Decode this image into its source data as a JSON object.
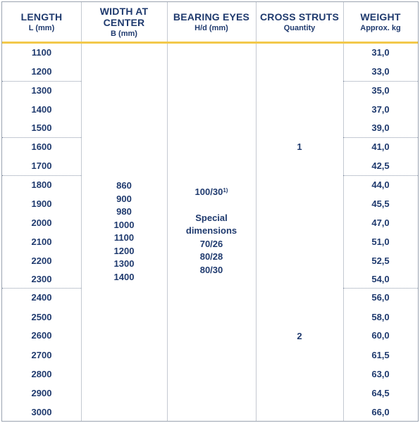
{
  "headers": {
    "length": {
      "title": "LENGTH",
      "sub": "L (mm)"
    },
    "width": {
      "title_line1": "WIDTH AT",
      "title_line2": "CENTER",
      "sub": "B (mm)"
    },
    "bearing": {
      "title": "BEARING EYES",
      "sub": "H/d (mm)"
    },
    "struts": {
      "title": "CROSS STRUTS",
      "sub": "Quantity"
    },
    "weight": {
      "title": "WEIGHT",
      "sub": "Approx. kg"
    }
  },
  "rows": [
    {
      "length": "1100",
      "weight": "31,0"
    },
    {
      "length": "1200",
      "weight": "33,0"
    },
    {
      "length": "1300",
      "weight": "35,0"
    },
    {
      "length": "1400",
      "weight": "37,0"
    },
    {
      "length": "1500",
      "weight": "39,0"
    },
    {
      "length": "1600",
      "weight": "41,0"
    },
    {
      "length": "1700",
      "weight": "42,5"
    },
    {
      "length": "1800",
      "weight": "44,0"
    },
    {
      "length": "1900",
      "weight": "45,5"
    },
    {
      "length": "2000",
      "weight": "47,0"
    },
    {
      "length": "2100",
      "weight": "51,0"
    },
    {
      "length": "2200",
      "weight": "52,5"
    },
    {
      "length": "2300",
      "weight": "54,0"
    },
    {
      "length": "2400",
      "weight": "56,0"
    },
    {
      "length": "2500",
      "weight": "58,0"
    },
    {
      "length": "2600",
      "weight": "60,0"
    },
    {
      "length": "2700",
      "weight": "61,5"
    },
    {
      "length": "2800",
      "weight": "63,0"
    },
    {
      "length": "2900",
      "weight": "64,5"
    },
    {
      "length": "3000",
      "weight": "66,0"
    }
  ],
  "widths": [
    "860",
    "900",
    "980",
    "1000",
    "1100",
    "1200",
    "1300",
    "1400"
  ],
  "bearing": {
    "main": "100/30",
    "footnote": "1)",
    "special_line1": "Special",
    "special_line2": "dimensions",
    "alternatives": [
      "70/26",
      "80/28",
      "80/30"
    ]
  },
  "struts": {
    "group1": "1",
    "group2": "2"
  }
}
